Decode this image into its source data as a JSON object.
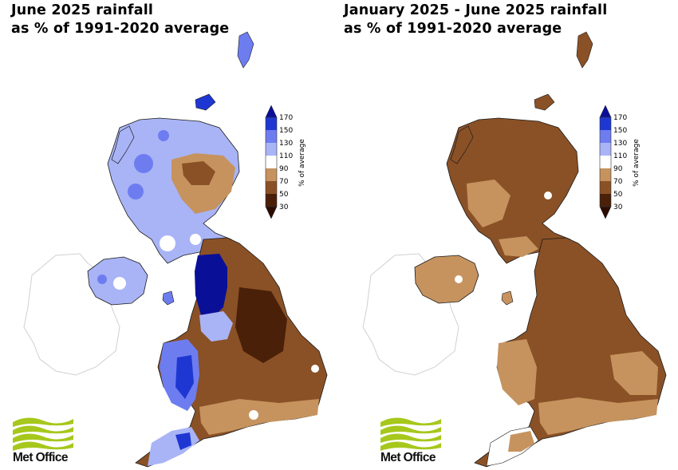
{
  "panels": [
    {
      "title_line1": "June 2025 rainfall",
      "title_line2": "as % of 1991-2020 average",
      "logo_text": "Met Office"
    },
    {
      "title_line1": "January 2025 - June 2025 rainfall",
      "title_line2": "as % of 1991-2020 average",
      "logo_text": "Met Office"
    }
  ],
  "legend": {
    "axis_label": "% of average",
    "ticks": [
      "170",
      "150",
      "130",
      "110",
      "90",
      "70",
      "50",
      "30"
    ],
    "bins": [
      {
        "from": 150,
        "to": 170,
        "color": "#1f37d2"
      },
      {
        "from": 130,
        "to": 150,
        "color": "#6d7df0"
      },
      {
        "from": 110,
        "to": 130,
        "color": "#a9b4f6"
      },
      {
        "from": 90,
        "to": 110,
        "color": "#ffffff"
      },
      {
        "from": 70,
        "to": 90,
        "color": "#c6935e"
      },
      {
        "from": 50,
        "to": 70,
        "color": "#8a5126"
      },
      {
        "from": 30,
        "to": 50,
        "color": "#4a2008"
      }
    ],
    "over_color": "#0a0f98",
    "under_color": "#2b0c02"
  },
  "colors": {
    "logo_green": "#a6c81c",
    "border": "#1a1a1a",
    "ireland_outline": "#d0d0d0"
  }
}
